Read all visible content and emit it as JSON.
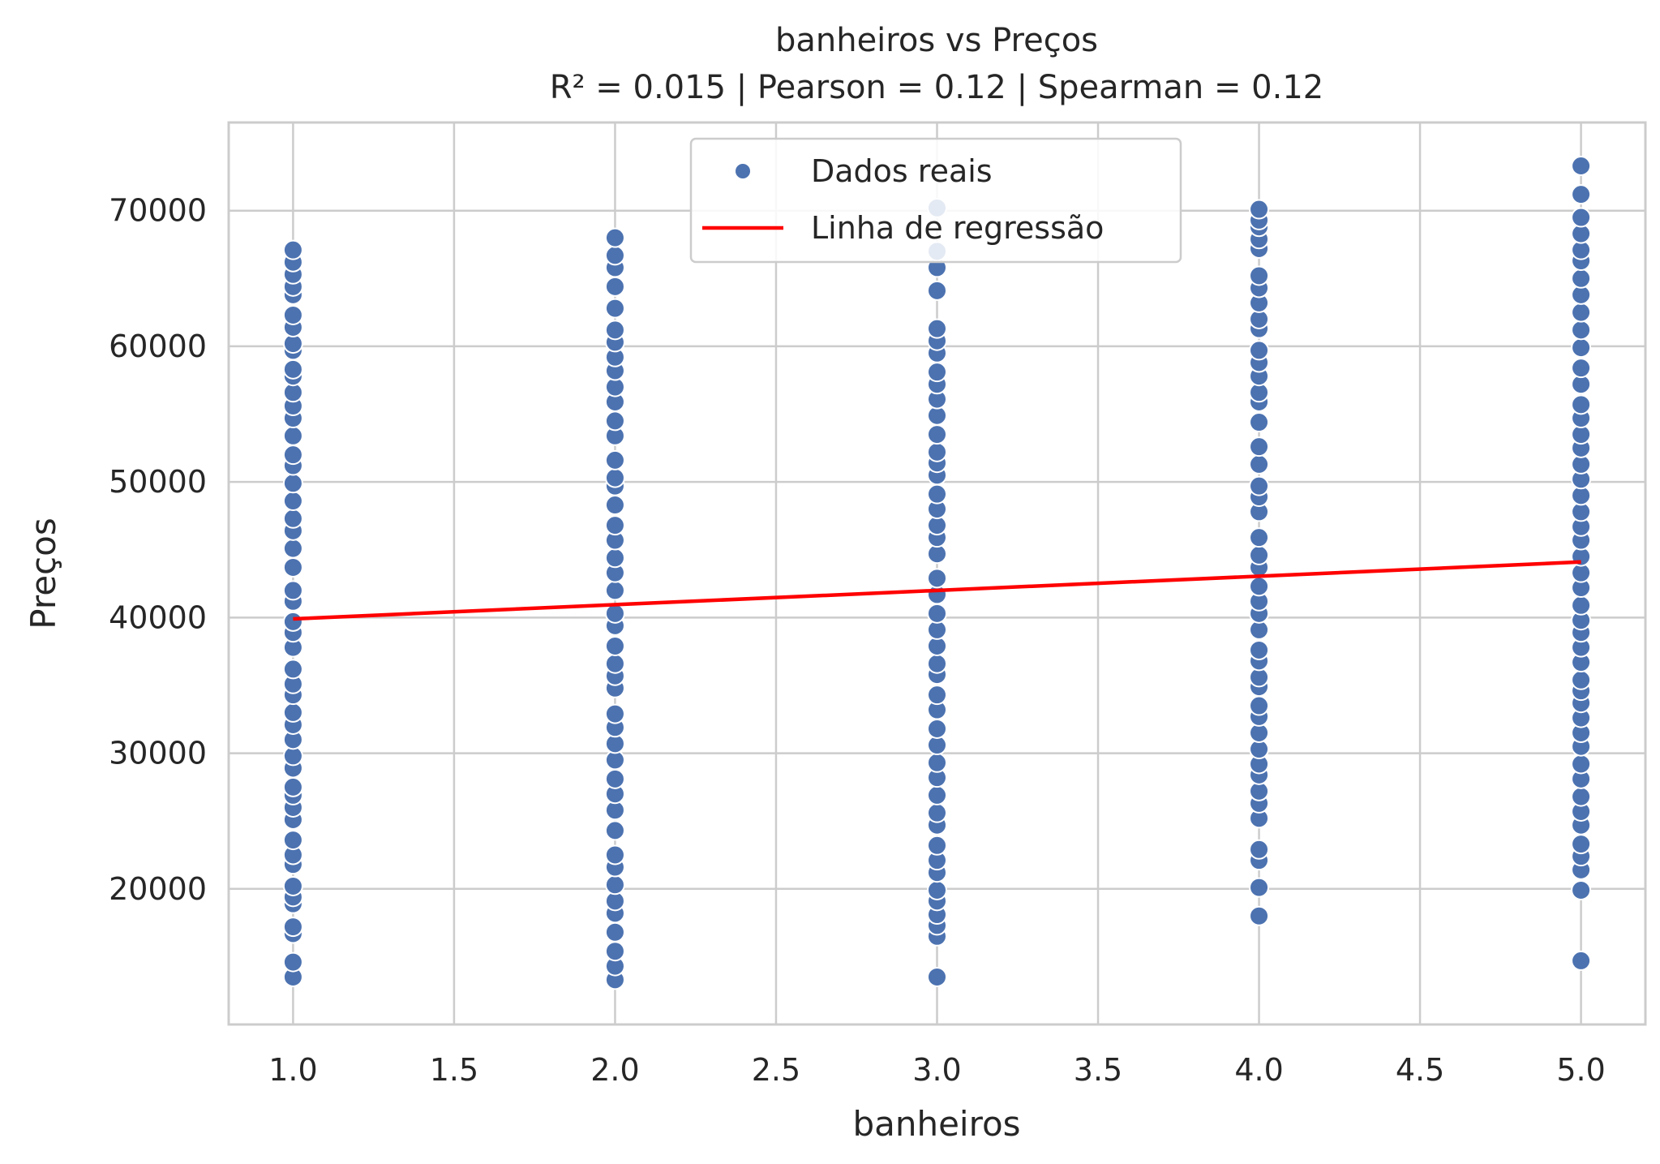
{
  "chart_data": {
    "type": "scatter",
    "title": "banheiros vs Preços",
    "subtitle": "R² = 0.015 | Pearson = 0.12 | Spearman = 0.12",
    "xlabel": "banheiros",
    "ylabel": "Preços",
    "xlim": [
      0.8,
      5.2
    ],
    "ylim": [
      10000,
      76500
    ],
    "x_ticks": [
      1.0,
      1.5,
      2.0,
      2.5,
      3.0,
      3.5,
      4.0,
      4.5,
      5.0
    ],
    "x_tick_labels": [
      "1.0",
      "1.5",
      "2.0",
      "2.5",
      "3.0",
      "3.5",
      "4.0",
      "4.5",
      "5.0"
    ],
    "y_ticks": [
      20000,
      30000,
      40000,
      50000,
      60000,
      70000
    ],
    "y_tick_labels": [
      "20000",
      "30000",
      "40000",
      "50000",
      "60000",
      "70000"
    ],
    "grid": true,
    "legend_position": "top-center",
    "series": [
      {
        "name": "Dados reais",
        "type": "scatter",
        "color": "#4c72b0",
        "points": [
          {
            "x": 1,
            "y": 13500
          },
          {
            "x": 1,
            "y": 14600
          },
          {
            "x": 1,
            "y": 16700
          },
          {
            "x": 1,
            "y": 17200
          },
          {
            "x": 1,
            "y": 18900
          },
          {
            "x": 1,
            "y": 19400
          },
          {
            "x": 1,
            "y": 20200
          },
          {
            "x": 1,
            "y": 21800
          },
          {
            "x": 1,
            "y": 22500
          },
          {
            "x": 1,
            "y": 23600
          },
          {
            "x": 1,
            "y": 25100
          },
          {
            "x": 1,
            "y": 26000
          },
          {
            "x": 1,
            "y": 26900
          },
          {
            "x": 1,
            "y": 27500
          },
          {
            "x": 1,
            "y": 28900
          },
          {
            "x": 1,
            "y": 29800
          },
          {
            "x": 1,
            "y": 31000
          },
          {
            "x": 1,
            "y": 32100
          },
          {
            "x": 1,
            "y": 33000
          },
          {
            "x": 1,
            "y": 34300
          },
          {
            "x": 1,
            "y": 35100
          },
          {
            "x": 1,
            "y": 36200
          },
          {
            "x": 1,
            "y": 37800
          },
          {
            "x": 1,
            "y": 38900
          },
          {
            "x": 1,
            "y": 39700
          },
          {
            "x": 1,
            "y": 41200
          },
          {
            "x": 1,
            "y": 42000
          },
          {
            "x": 1,
            "y": 43700
          },
          {
            "x": 1,
            "y": 45100
          },
          {
            "x": 1,
            "y": 46400
          },
          {
            "x": 1,
            "y": 47300
          },
          {
            "x": 1,
            "y": 48600
          },
          {
            "x": 1,
            "y": 49900
          },
          {
            "x": 1,
            "y": 51200
          },
          {
            "x": 1,
            "y": 52000
          },
          {
            "x": 1,
            "y": 53400
          },
          {
            "x": 1,
            "y": 54700
          },
          {
            "x": 1,
            "y": 55600
          },
          {
            "x": 1,
            "y": 56600
          },
          {
            "x": 1,
            "y": 57800
          },
          {
            "x": 1,
            "y": 58300
          },
          {
            "x": 1,
            "y": 59700
          },
          {
            "x": 1,
            "y": 60200
          },
          {
            "x": 1,
            "y": 61400
          },
          {
            "x": 1,
            "y": 62300
          },
          {
            "x": 1,
            "y": 63800
          },
          {
            "x": 1,
            "y": 64400
          },
          {
            "x": 1,
            "y": 65300
          },
          {
            "x": 1,
            "y": 66200
          },
          {
            "x": 1,
            "y": 67100
          },
          {
            "x": 2,
            "y": 13300
          },
          {
            "x": 2,
            "y": 14300
          },
          {
            "x": 2,
            "y": 15400
          },
          {
            "x": 2,
            "y": 16800
          },
          {
            "x": 2,
            "y": 18200
          },
          {
            "x": 2,
            "y": 19100
          },
          {
            "x": 2,
            "y": 20300
          },
          {
            "x": 2,
            "y": 21600
          },
          {
            "x": 2,
            "y": 22500
          },
          {
            "x": 2,
            "y": 24300
          },
          {
            "x": 2,
            "y": 25800
          },
          {
            "x": 2,
            "y": 27000
          },
          {
            "x": 2,
            "y": 28100
          },
          {
            "x": 2,
            "y": 29500
          },
          {
            "x": 2,
            "y": 30700
          },
          {
            "x": 2,
            "y": 31900
          },
          {
            "x": 2,
            "y": 32900
          },
          {
            "x": 2,
            "y": 34800
          },
          {
            "x": 2,
            "y": 35700
          },
          {
            "x": 2,
            "y": 36600
          },
          {
            "x": 2,
            "y": 37900
          },
          {
            "x": 2,
            "y": 39400
          },
          {
            "x": 2,
            "y": 40300
          },
          {
            "x": 2,
            "y": 42000
          },
          {
            "x": 2,
            "y": 43300
          },
          {
            "x": 2,
            "y": 44400
          },
          {
            "x": 2,
            "y": 45700
          },
          {
            "x": 2,
            "y": 46800
          },
          {
            "x": 2,
            "y": 48300
          },
          {
            "x": 2,
            "y": 49700
          },
          {
            "x": 2,
            "y": 50300
          },
          {
            "x": 2,
            "y": 51600
          },
          {
            "x": 2,
            "y": 53400
          },
          {
            "x": 2,
            "y": 54500
          },
          {
            "x": 2,
            "y": 55900
          },
          {
            "x": 2,
            "y": 57000
          },
          {
            "x": 2,
            "y": 58200
          },
          {
            "x": 2,
            "y": 59200
          },
          {
            "x": 2,
            "y": 60300
          },
          {
            "x": 2,
            "y": 61200
          },
          {
            "x": 2,
            "y": 62800
          },
          {
            "x": 2,
            "y": 64400
          },
          {
            "x": 2,
            "y": 65800
          },
          {
            "x": 2,
            "y": 66700
          },
          {
            "x": 2,
            "y": 68000
          },
          {
            "x": 3,
            "y": 13500
          },
          {
            "x": 3,
            "y": 16500
          },
          {
            "x": 3,
            "y": 17300
          },
          {
            "x": 3,
            "y": 18100
          },
          {
            "x": 3,
            "y": 19100
          },
          {
            "x": 3,
            "y": 19900
          },
          {
            "x": 3,
            "y": 21200
          },
          {
            "x": 3,
            "y": 22100
          },
          {
            "x": 3,
            "y": 23200
          },
          {
            "x": 3,
            "y": 24700
          },
          {
            "x": 3,
            "y": 25600
          },
          {
            "x": 3,
            "y": 26900
          },
          {
            "x": 3,
            "y": 28200
          },
          {
            "x": 3,
            "y": 29300
          },
          {
            "x": 3,
            "y": 30600
          },
          {
            "x": 3,
            "y": 31800
          },
          {
            "x": 3,
            "y": 33200
          },
          {
            "x": 3,
            "y": 34300
          },
          {
            "x": 3,
            "y": 35800
          },
          {
            "x": 3,
            "y": 36600
          },
          {
            "x": 3,
            "y": 37900
          },
          {
            "x": 3,
            "y": 39100
          },
          {
            "x": 3,
            "y": 40300
          },
          {
            "x": 3,
            "y": 41700
          },
          {
            "x": 3,
            "y": 42900
          },
          {
            "x": 3,
            "y": 44700
          },
          {
            "x": 3,
            "y": 45900
          },
          {
            "x": 3,
            "y": 46800
          },
          {
            "x": 3,
            "y": 48000
          },
          {
            "x": 3,
            "y": 49100
          },
          {
            "x": 3,
            "y": 50500
          },
          {
            "x": 3,
            "y": 51400
          },
          {
            "x": 3,
            "y": 52200
          },
          {
            "x": 3,
            "y": 53500
          },
          {
            "x": 3,
            "y": 54900
          },
          {
            "x": 3,
            "y": 56100
          },
          {
            "x": 3,
            "y": 57200
          },
          {
            "x": 3,
            "y": 58100
          },
          {
            "x": 3,
            "y": 59500
          },
          {
            "x": 3,
            "y": 60400
          },
          {
            "x": 3,
            "y": 61300
          },
          {
            "x": 3,
            "y": 64100
          },
          {
            "x": 3,
            "y": 65800
          },
          {
            "x": 3,
            "y": 67000
          },
          {
            "x": 3,
            "y": 70200
          },
          {
            "x": 4,
            "y": 18000
          },
          {
            "x": 4,
            "y": 20100
          },
          {
            "x": 4,
            "y": 22100
          },
          {
            "x": 4,
            "y": 22900
          },
          {
            "x": 4,
            "y": 25200
          },
          {
            "x": 4,
            "y": 26300
          },
          {
            "x": 4,
            "y": 27200
          },
          {
            "x": 4,
            "y": 28400
          },
          {
            "x": 4,
            "y": 29200
          },
          {
            "x": 4,
            "y": 30300
          },
          {
            "x": 4,
            "y": 31500
          },
          {
            "x": 4,
            "y": 32700
          },
          {
            "x": 4,
            "y": 33500
          },
          {
            "x": 4,
            "y": 34900
          },
          {
            "x": 4,
            "y": 35600
          },
          {
            "x": 4,
            "y": 36800
          },
          {
            "x": 4,
            "y": 37600
          },
          {
            "x": 4,
            "y": 39100
          },
          {
            "x": 4,
            "y": 40300
          },
          {
            "x": 4,
            "y": 41200
          },
          {
            "x": 4,
            "y": 42300
          },
          {
            "x": 4,
            "y": 43700
          },
          {
            "x": 4,
            "y": 44600
          },
          {
            "x": 4,
            "y": 45900
          },
          {
            "x": 4,
            "y": 47800
          },
          {
            "x": 4,
            "y": 48900
          },
          {
            "x": 4,
            "y": 49700
          },
          {
            "x": 4,
            "y": 51300
          },
          {
            "x": 4,
            "y": 52600
          },
          {
            "x": 4,
            "y": 54400
          },
          {
            "x": 4,
            "y": 55900
          },
          {
            "x": 4,
            "y": 56600
          },
          {
            "x": 4,
            "y": 57800
          },
          {
            "x": 4,
            "y": 58800
          },
          {
            "x": 4,
            "y": 59700
          },
          {
            "x": 4,
            "y": 61300
          },
          {
            "x": 4,
            "y": 62000
          },
          {
            "x": 4,
            "y": 63200
          },
          {
            "x": 4,
            "y": 64300
          },
          {
            "x": 4,
            "y": 65200
          },
          {
            "x": 4,
            "y": 67200
          },
          {
            "x": 4,
            "y": 67900
          },
          {
            "x": 4,
            "y": 68800
          },
          {
            "x": 4,
            "y": 69300
          },
          {
            "x": 4,
            "y": 70100
          },
          {
            "x": 5,
            "y": 14700
          },
          {
            "x": 5,
            "y": 19900
          },
          {
            "x": 5,
            "y": 21400
          },
          {
            "x": 5,
            "y": 22400
          },
          {
            "x": 5,
            "y": 23300
          },
          {
            "x": 5,
            "y": 24700
          },
          {
            "x": 5,
            "y": 25700
          },
          {
            "x": 5,
            "y": 26800
          },
          {
            "x": 5,
            "y": 28100
          },
          {
            "x": 5,
            "y": 29200
          },
          {
            "x": 5,
            "y": 30500
          },
          {
            "x": 5,
            "y": 31500
          },
          {
            "x": 5,
            "y": 32600
          },
          {
            "x": 5,
            "y": 33700
          },
          {
            "x": 5,
            "y": 34600
          },
          {
            "x": 5,
            "y": 35400
          },
          {
            "x": 5,
            "y": 36700
          },
          {
            "x": 5,
            "y": 37800
          },
          {
            "x": 5,
            "y": 38900
          },
          {
            "x": 5,
            "y": 39800
          },
          {
            "x": 5,
            "y": 40900
          },
          {
            "x": 5,
            "y": 42200
          },
          {
            "x": 5,
            "y": 43300
          },
          {
            "x": 5,
            "y": 44500
          },
          {
            "x": 5,
            "y": 45700
          },
          {
            "x": 5,
            "y": 46700
          },
          {
            "x": 5,
            "y": 47800
          },
          {
            "x": 5,
            "y": 49000
          },
          {
            "x": 5,
            "y": 50200
          },
          {
            "x": 5,
            "y": 51300
          },
          {
            "x": 5,
            "y": 52500
          },
          {
            "x": 5,
            "y": 53500
          },
          {
            "x": 5,
            "y": 54700
          },
          {
            "x": 5,
            "y": 55700
          },
          {
            "x": 5,
            "y": 57200
          },
          {
            "x": 5,
            "y": 58400
          },
          {
            "x": 5,
            "y": 59900
          },
          {
            "x": 5,
            "y": 61200
          },
          {
            "x": 5,
            "y": 62500
          },
          {
            "x": 5,
            "y": 63800
          },
          {
            "x": 5,
            "y": 65000
          },
          {
            "x": 5,
            "y": 66300
          },
          {
            "x": 5,
            "y": 67100
          },
          {
            "x": 5,
            "y": 68300
          },
          {
            "x": 5,
            "y": 69500
          },
          {
            "x": 5,
            "y": 71200
          },
          {
            "x": 5,
            "y": 73300
          }
        ]
      },
      {
        "name": "Linha de regressão",
        "type": "line",
        "color": "#ff0000",
        "points": [
          {
            "x": 1,
            "y": 39900
          },
          {
            "x": 5,
            "y": 44100
          }
        ]
      }
    ]
  }
}
